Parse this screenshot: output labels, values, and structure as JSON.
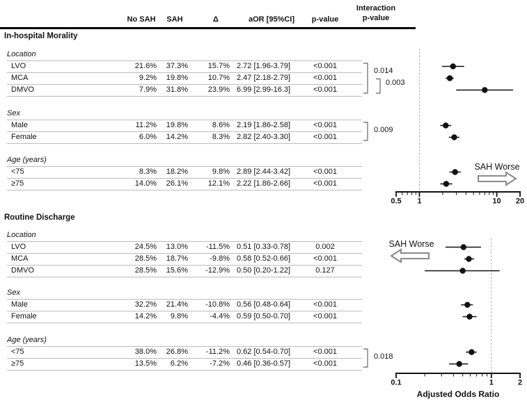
{
  "header": {
    "columns": [
      "No SAH",
      "SAH",
      "Δ",
      "aOR [95%CI]",
      "p-value"
    ],
    "interaction_line1": "Interaction",
    "interaction_line2": "p-value"
  },
  "sections": [
    {
      "title": "In-hospital Morality",
      "groups": [
        {
          "label": "Location",
          "rows": [
            {
              "label": "LVO",
              "no_sah": "21.6%",
              "sah": "37.3%",
              "delta": "15.7%",
              "aor": "2.72 [1.96-3.79]",
              "p": "<0.001"
            },
            {
              "label": "MCA",
              "no_sah": "9.2%",
              "sah": "19.8%",
              "delta": "10.7%",
              "aor": "2.47 [2.18-2.79]",
              "p": "<0.001"
            },
            {
              "label": "DMVO",
              "no_sah": "7.9%",
              "sah": "31.8%",
              "delta": "23.9%",
              "aor": "6.99 [2.99-16.3]",
              "p": "<0.001"
            }
          ],
          "interaction": [
            {
              "p": "0.014",
              "from": 0,
              "to": 2,
              "level": 0
            },
            {
              "p": "0.003",
              "from": 1,
              "to": 2,
              "level": 1
            }
          ]
        },
        {
          "label": "Sex",
          "rows": [
            {
              "label": "Male",
              "no_sah": "11.2%",
              "sah": "19.8%",
              "delta": "8.6%",
              "aor": "2.19 [1.86-2.58]",
              "p": "<0.001"
            },
            {
              "label": "Female",
              "no_sah": "6.0%",
              "sah": "14.2%",
              "delta": "8.3%",
              "aor": "2.82 [2.40-3.30]",
              "p": "<0.001"
            }
          ],
          "interaction": [
            {
              "p": "0.009",
              "from": 0,
              "to": 1,
              "level": 0
            }
          ]
        },
        {
          "label": "Age (years)",
          "rows": [
            {
              "label": "<75",
              "no_sah": "8.3%",
              "sah": "18.2%",
              "delta": "9.8%",
              "aor": "2.89 [2.44-3.42]",
              "p": "<0.001"
            },
            {
              "label": "≥75",
              "no_sah": "14.0%",
              "sah": "26.1%",
              "delta": "12.1%",
              "aor": "2.22 [1.86-2.66]",
              "p": "<0.001"
            }
          ],
          "interaction": []
        }
      ]
    },
    {
      "title": "Routine Discharge",
      "groups": [
        {
          "label": "Location",
          "rows": [
            {
              "label": "LVO",
              "no_sah": "24.5%",
              "sah": "13.0%",
              "delta": "-11.5%",
              "aor": "0.51 [0.33-0.78]",
              "p": "0.002"
            },
            {
              "label": "MCA",
              "no_sah": "28.5%",
              "sah": "18.7%",
              "delta": "-9.8%",
              "aor": "0.58 [0.52-0.66]",
              "p": "<0.001"
            },
            {
              "label": "DMVO",
              "no_sah": "28.5%",
              "sah": "15.6%",
              "delta": "-12.9%",
              "aor": "0.50 [0.20-1.22]",
              "p": "0.127"
            }
          ],
          "interaction": []
        },
        {
          "label": "Sex",
          "rows": [
            {
              "label": "Male",
              "no_sah": "32.2%",
              "sah": "21.4%",
              "delta": "-10.8%",
              "aor": "0.56 [0.48-0.64]",
              "p": "<0.001"
            },
            {
              "label": "Female",
              "no_sah": "14.2%",
              "sah": "9.8%",
              "delta": "-4.4%",
              "aor": "0.59 [0.50-0.70]",
              "p": "<0.001"
            }
          ],
          "interaction": []
        },
        {
          "label": "Age (years)",
          "rows": [
            {
              "label": "<75",
              "no_sah": "38.0%",
              "sah": "26.8%",
              "delta": "-11.2%",
              "aor": "0.62 [0.54-0.70]",
              "p": "<0.001"
            },
            {
              "label": "≥75",
              "no_sah": "13.5%",
              "sah": "6.2%",
              "delta": "-7.2%",
              "aor": "0.46 [0.36-0.57]",
              "p": "<0.001"
            }
          ],
          "interaction": [
            {
              "p": "0.018",
              "from": 0,
              "to": 1,
              "level": 0
            }
          ]
        }
      ]
    }
  ],
  "chart_data": [
    {
      "type": "scatter",
      "subtype": "forest-plot",
      "title": "In-hospital Morality",
      "categories": [
        "LVO",
        "MCA",
        "DMVO",
        "Male",
        "Female",
        "<75",
        "≥75"
      ],
      "series": [
        {
          "name": "aOR",
          "values": [
            2.72,
            2.47,
            6.99,
            2.19,
            2.82,
            2.89,
            2.22
          ]
        }
      ],
      "ci_low": [
        1.96,
        2.18,
        2.99,
        1.86,
        2.4,
        2.44,
        1.86
      ],
      "ci_high": [
        3.79,
        2.79,
        16.3,
        2.58,
        3.3,
        3.42,
        2.66
      ],
      "xscale": "log",
      "xlim": [
        0.5,
        20
      ],
      "xticks": [
        {
          "label": "0.5",
          "value": 0.5
        },
        {
          "label": "1",
          "value": 1
        },
        {
          "label": "10",
          "value": 10
        },
        {
          "label": "20",
          "value": 20
        }
      ],
      "minor_ticks": [
        0.6,
        0.7,
        0.8,
        0.9,
        2,
        3,
        4,
        5,
        6,
        7,
        8,
        9
      ],
      "reference_line": 1,
      "xlabel": "",
      "annotation": {
        "text": "SAH Worse",
        "direction": "right"
      }
    },
    {
      "type": "scatter",
      "subtype": "forest-plot",
      "title": "Routine Discharge",
      "categories": [
        "LVO",
        "MCA",
        "DMVO",
        "Male",
        "Female",
        "<75",
        "≥75"
      ],
      "series": [
        {
          "name": "aOR",
          "values": [
            0.51,
            0.58,
            0.5,
            0.56,
            0.59,
            0.62,
            0.46
          ]
        }
      ],
      "ci_low": [
        0.33,
        0.52,
        0.2,
        0.48,
        0.5,
        0.54,
        0.36
      ],
      "ci_high": [
        0.78,
        0.66,
        1.22,
        0.64,
        0.7,
        0.7,
        0.57
      ],
      "xscale": "log",
      "xlim": [
        0.1,
        2
      ],
      "xticks": [
        {
          "label": "0.1",
          "value": 0.1
        },
        {
          "label": "1",
          "value": 1
        },
        {
          "label": "2",
          "value": 2
        }
      ],
      "minor_ticks": [
        0.2,
        0.3,
        0.4,
        0.5,
        0.6,
        0.7,
        0.8,
        0.9
      ],
      "reference_line": 1,
      "xlabel": "Adjusted Odds Ratio",
      "annotation": {
        "text": "SAH Worse",
        "direction": "left"
      }
    }
  ],
  "colors": {
    "text": "#121212",
    "grid_line": "#bcbcbc",
    "axis": "#111111",
    "point": "#111111",
    "reference_line": "#aaaaaa",
    "arrow_outline": "#8a8a8a",
    "bracket": "#666666"
  }
}
